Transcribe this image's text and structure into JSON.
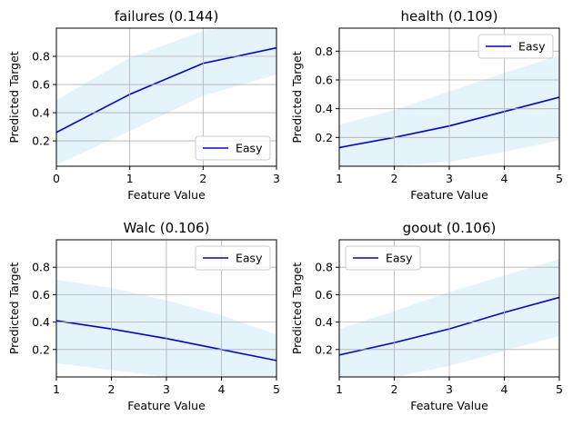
{
  "colors": {
    "line": "#0000dd",
    "band": "#87ceeb",
    "grid": "#b0b0b0",
    "axes": "#000000"
  },
  "chart_data": [
    {
      "type": "line",
      "title": "failures (0.144)",
      "xlabel": "Feature Value",
      "ylabel": "Predicted Target",
      "xlim": [
        0,
        3
      ],
      "ylim": [
        0.02,
        1.0
      ],
      "xticks": [
        "0",
        "1",
        "2",
        "3"
      ],
      "yticks": [
        "0.2",
        "0.4",
        "0.6",
        "0.8"
      ],
      "grid": true,
      "legend_position": "lower-right",
      "series": [
        {
          "name": "Easy",
          "x": [
            0,
            1,
            2,
            3
          ],
          "y": [
            0.26,
            0.53,
            0.75,
            0.86
          ],
          "lower": [
            0.03,
            0.27,
            0.52,
            0.67
          ],
          "upper": [
            0.49,
            0.79,
            0.98,
            1.05
          ]
        }
      ]
    },
    {
      "type": "line",
      "title": "health (0.109)",
      "xlabel": "Feature Value",
      "ylabel": "Predicted Target",
      "xlim": [
        1,
        5
      ],
      "ylim": [
        0.0,
        0.96
      ],
      "xticks": [
        "1",
        "2",
        "3",
        "4",
        "5"
      ],
      "yticks": [
        "0.2",
        "0.4",
        "0.6",
        "0.8"
      ],
      "grid": true,
      "legend_position": "upper-right",
      "series": [
        {
          "name": "Easy",
          "x": [
            1,
            2,
            3,
            4,
            5
          ],
          "y": [
            0.13,
            0.2,
            0.28,
            0.38,
            0.48
          ],
          "lower": [
            -0.04,
            0.0,
            0.03,
            0.1,
            0.18
          ],
          "upper": [
            0.29,
            0.39,
            0.52,
            0.65,
            0.77
          ]
        }
      ]
    },
    {
      "type": "line",
      "title": "Walc (0.106)",
      "xlabel": "Feature Value",
      "ylabel": "Predicted Target",
      "xlim": [
        1,
        5
      ],
      "ylim": [
        0.0,
        1.0
      ],
      "xticks": [
        "1",
        "2",
        "3",
        "4",
        "5"
      ],
      "yticks": [
        "0.2",
        "0.4",
        "0.6",
        "0.8"
      ],
      "grid": true,
      "legend_position": "upper-right",
      "series": [
        {
          "name": "Easy",
          "x": [
            1,
            2,
            3,
            4,
            5
          ],
          "y": [
            0.41,
            0.35,
            0.28,
            0.2,
            0.12
          ],
          "lower": [
            0.1,
            0.05,
            0.0,
            -0.04,
            -0.06
          ],
          "upper": [
            0.71,
            0.65,
            0.56,
            0.45,
            0.31
          ]
        }
      ]
    },
    {
      "type": "line",
      "title": "goout (0.106)",
      "xlabel": "Feature Value",
      "ylabel": "Predicted Target",
      "xlim": [
        1,
        5
      ],
      "ylim": [
        0.0,
        1.0
      ],
      "xticks": [
        "1",
        "2",
        "3",
        "4",
        "5"
      ],
      "yticks": [
        "0.2",
        "0.4",
        "0.6",
        "0.8"
      ],
      "grid": true,
      "legend_position": "upper-left",
      "series": [
        {
          "name": "Easy",
          "x": [
            1,
            2,
            3,
            4,
            5
          ],
          "y": [
            0.16,
            0.25,
            0.35,
            0.47,
            0.58
          ],
          "lower": [
            -0.02,
            0.0,
            0.08,
            0.19,
            0.3
          ],
          "upper": [
            0.35,
            0.48,
            0.62,
            0.74,
            0.86
          ]
        }
      ]
    }
  ]
}
